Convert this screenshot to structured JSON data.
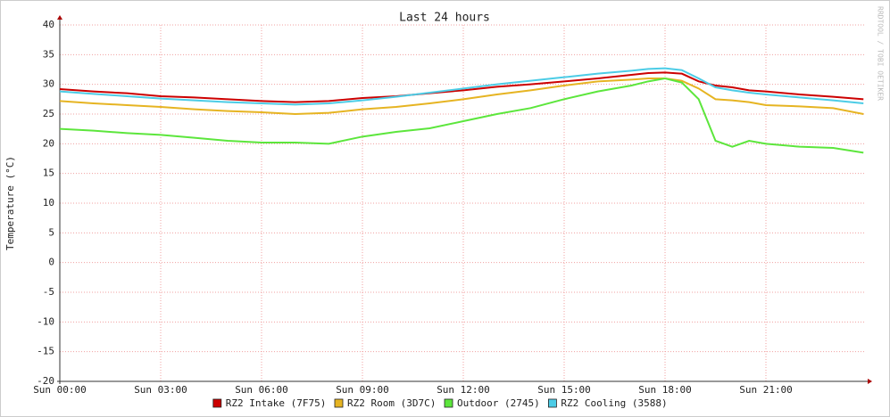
{
  "chart_data": {
    "type": "line",
    "title": "Last 24 hours",
    "y_label": "Temperature (°C)",
    "side_text": "RRDTOOL / TOBI OETIKER",
    "x": [
      0,
      1,
      2,
      3,
      4,
      5,
      6,
      7,
      8,
      9,
      10,
      11,
      12,
      13,
      14,
      15,
      16,
      17,
      17.5,
      18,
      18.5,
      19,
      19.5,
      20,
      20.5,
      21,
      22,
      23,
      23.9
    ],
    "xlim": [
      0,
      23.92
    ],
    "xticks": [
      {
        "value": 0,
        "label": "Sun 00:00"
      },
      {
        "value": 3,
        "label": "Sun 03:00"
      },
      {
        "value": 6,
        "label": "Sun 06:00"
      },
      {
        "value": 9,
        "label": "Sun 09:00"
      },
      {
        "value": 12,
        "label": "Sun 12:00"
      },
      {
        "value": 15,
        "label": "Sun 15:00"
      },
      {
        "value": 18,
        "label": "Sun 18:00"
      },
      {
        "value": 21,
        "label": "Sun 21:00"
      }
    ],
    "ylim": [
      -20,
      40
    ],
    "yticks": [
      -20,
      -15,
      -10,
      -5,
      0,
      5,
      10,
      15,
      20,
      25,
      30,
      35,
      40
    ],
    "grid": true,
    "series": [
      {
        "name": "RZ2 Intake (7F75)",
        "color": "#cc0000",
        "values": [
          29.2,
          28.8,
          28.5,
          28.0,
          27.8,
          27.5,
          27.2,
          27.0,
          27.2,
          27.7,
          28.0,
          28.5,
          29.0,
          29.6,
          30.0,
          30.5,
          31.0,
          31.6,
          31.9,
          32.0,
          31.8,
          30.5,
          29.8,
          29.5,
          29.0,
          28.8,
          28.3,
          27.9,
          27.5
        ]
      },
      {
        "name": "RZ2 Room (3D7C)",
        "color": "#e6b422",
        "values": [
          27.2,
          26.8,
          26.5,
          26.2,
          25.8,
          25.5,
          25.3,
          25.0,
          25.2,
          25.8,
          26.2,
          26.8,
          27.5,
          28.3,
          29.0,
          29.8,
          30.5,
          30.8,
          31.0,
          31.0,
          30.6,
          29.3,
          27.5,
          27.3,
          27.0,
          26.5,
          26.3,
          26.0,
          25.0
        ]
      },
      {
        "name": "Outdoor (2745)",
        "color": "#5ce63c",
        "values": [
          22.5,
          22.2,
          21.8,
          21.5,
          21.0,
          20.5,
          20.2,
          20.2,
          20.0,
          21.2,
          22.0,
          22.6,
          23.8,
          25.0,
          26.0,
          27.5,
          28.8,
          29.8,
          30.5,
          31.0,
          30.3,
          27.5,
          20.5,
          19.5,
          20.5,
          20.0,
          19.5,
          19.3,
          18.5
        ]
      },
      {
        "name": "RZ2 Cooling (3588)",
        "color": "#4ccce6",
        "values": [
          28.8,
          28.4,
          28.0,
          27.6,
          27.3,
          27.0,
          26.8,
          26.6,
          26.8,
          27.3,
          27.9,
          28.6,
          29.3,
          30.0,
          30.6,
          31.2,
          31.8,
          32.3,
          32.6,
          32.7,
          32.4,
          31.0,
          29.5,
          29.0,
          28.6,
          28.3,
          27.8,
          27.3,
          26.8
        ]
      }
    ]
  }
}
